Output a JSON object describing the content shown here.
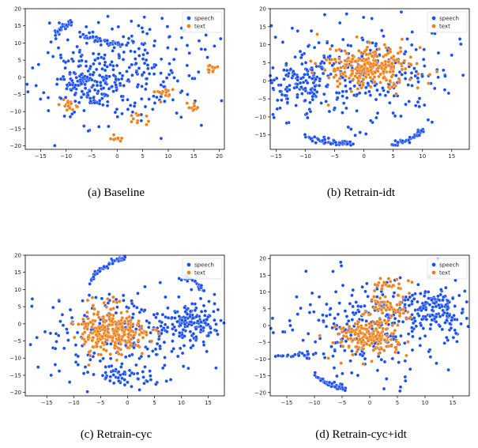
{
  "colors": {
    "speech": "#1a4ff0",
    "text": "#f07f18",
    "point_edge": "#ffffff",
    "axes": "#000000"
  },
  "legend": {
    "placement": "upper-right",
    "entries": [
      "speech",
      "text"
    ]
  },
  "chart_data": [
    {
      "id": "a",
      "type": "scatter",
      "caption": "(a) Baseline",
      "xlim": [
        -18,
        21
      ],
      "ylim": [
        -21,
        20
      ],
      "xticks": [
        -15,
        -10,
        -5,
        0,
        5,
        10,
        15,
        20
      ],
      "yticks": [
        -20,
        -15,
        -10,
        -5,
        0,
        5,
        10,
        15,
        20
      ],
      "series": [
        {
          "name": "speech",
          "seed": 11,
          "points": 380,
          "clusters": [
            {
              "cx": -1,
              "cy": 0,
              "sx": 8,
              "sy": 7,
              "w": 0.65
            },
            {
              "cx": -5,
              "cy": -2,
              "sx": 3,
              "sy": 4,
              "w": 0.25
            },
            {
              "cx": 5,
              "cy": 10,
              "sx": 6,
              "sy": 5,
              "w": 0.1
            }
          ],
          "arcs": [
            {
              "x": [
                -12,
                -11,
                -10,
                -9
              ],
              "y": [
                13,
                14.5,
                15.5,
                16
              ],
              "n": 28,
              "spread": 0.4
            },
            {
              "x": [
                -7,
                -4,
                -1,
                1
              ],
              "y": [
                12,
                11.5,
                10,
                9.5
              ],
              "n": 35,
              "spread": 0.3
            }
          ]
        },
        {
          "name": "text",
          "seed": 23,
          "points": 70,
          "clusters": [
            {
              "cx": -10,
              "cy": -8,
              "sx": 1,
              "sy": 1,
              "w": 0.25
            },
            {
              "cx": 0,
              "cy": -18,
              "sx": 0.8,
              "sy": 0.6,
              "w": 0.12
            },
            {
              "cx": 4,
              "cy": -12,
              "sx": 1,
              "sy": 1,
              "w": 0.15
            },
            {
              "cx": 9,
              "cy": -5,
              "sx": 1.2,
              "sy": 1.2,
              "w": 0.2
            },
            {
              "cx": 15,
              "cy": -9,
              "sx": 0.7,
              "sy": 1,
              "w": 0.13
            },
            {
              "cx": 18.5,
              "cy": 2.8,
              "sx": 0.6,
              "sy": 0.6,
              "w": 0.15
            }
          ],
          "arcs": []
        }
      ]
    },
    {
      "id": "b",
      "type": "scatter",
      "caption": "(b) Retrain-idt",
      "xlim": [
        -16,
        18
      ],
      "ylim": [
        -19,
        20
      ],
      "xticks": [
        -15,
        -10,
        -5,
        0,
        5,
        10,
        15
      ],
      "yticks": [
        -15,
        -10,
        -5,
        0,
        5,
        10,
        15,
        20
      ],
      "series": [
        {
          "name": "speech",
          "seed": 37,
          "points": 380,
          "clusters": [
            {
              "cx": 0,
              "cy": 2,
              "sx": 8,
              "sy": 7,
              "w": 0.75
            },
            {
              "cx": -11,
              "cy": -1,
              "sx": 3,
              "sy": 4,
              "w": 0.25
            }
          ],
          "arcs": [
            {
              "x": [
                -10,
                -7,
                -4,
                -2
              ],
              "y": [
                -15.5,
                -16.5,
                -17.3,
                -17.5
              ],
              "n": 45,
              "spread": 0.4
            },
            {
              "x": [
                5,
                7,
                9,
                10
              ],
              "y": [
                -17.5,
                -16.8,
                -15,
                -13.8
              ],
              "n": 40,
              "spread": 0.35
            }
          ]
        },
        {
          "name": "text",
          "seed": 41,
          "points": 260,
          "clusters": [
            {
              "cx": 1,
              "cy": 4,
              "sx": 3.5,
              "sy": 3.2,
              "w": 1
            }
          ],
          "arcs": []
        }
      ]
    },
    {
      "id": "c",
      "type": "scatter",
      "caption": "(c) Retrain-cyc",
      "xlim": [
        -19,
        18
      ],
      "ylim": [
        -21,
        20
      ],
      "xticks": [
        -15,
        -10,
        -5,
        0,
        5,
        10,
        15
      ],
      "yticks": [
        -20,
        -15,
        -10,
        -5,
        0,
        5,
        10,
        15,
        20
      ],
      "series": [
        {
          "name": "speech",
          "seed": 53,
          "points": 420,
          "clusters": [
            {
              "cx": -2,
              "cy": -3,
              "sx": 8,
              "sy": 6.5,
              "w": 0.55
            },
            {
              "cx": 12,
              "cy": 0,
              "sx": 3,
              "sy": 3,
              "w": 0.35
            },
            {
              "cx": 0,
              "cy": -16,
              "sx": 3,
              "sy": 1.5,
              "w": 0.1
            }
          ],
          "arcs": [
            {
              "x": [
                -7,
                -5,
                -2,
                -0.5
              ],
              "y": [
                13,
                16,
                18.5,
                19.3
              ],
              "n": 45,
              "spread": 0.4
            },
            {
              "x": [
                10,
                12,
                13.5,
                14
              ],
              "y": [
                14,
                13,
                11,
                10
              ],
              "n": 25,
              "spread": 0.5
            }
          ]
        },
        {
          "name": "text",
          "seed": 59,
          "points": 260,
          "clusters": [
            {
              "cx": -3,
              "cy": -2,
              "sx": 3.3,
              "sy": 3.3,
              "w": 1
            }
          ],
          "arcs": []
        }
      ]
    },
    {
      "id": "d",
      "type": "scatter",
      "caption": "(d) Retrain-cyc+idt",
      "xlim": [
        -18,
        18
      ],
      "ylim": [
        -21,
        21
      ],
      "xticks": [
        -15,
        -10,
        -5,
        0,
        5,
        10,
        15
      ],
      "yticks": [
        -20,
        -15,
        -10,
        -5,
        0,
        5,
        10,
        15,
        20
      ],
      "series": [
        {
          "name": "speech",
          "seed": 67,
          "points": 420,
          "clusters": [
            {
              "cx": 0,
              "cy": 0,
              "sx": 8,
              "sy": 7,
              "w": 0.65
            },
            {
              "cx": 12,
              "cy": 5,
              "sx": 3,
              "sy": 3,
              "w": 0.35
            }
          ],
          "arcs": [
            {
              "x": [
                -17,
                -14,
                -12,
                -11
              ],
              "y": [
                -8.8,
                -8.8,
                -9,
                -9
              ],
              "n": 20,
              "spread": 0.3
            },
            {
              "x": [
                -10,
                -8,
                -6,
                -4.5
              ],
              "y": [
                -15,
                -17,
                -18.3,
                -18.5
              ],
              "n": 35,
              "spread": 0.4
            }
          ]
        },
        {
          "name": "text",
          "seed": 71,
          "points": 250,
          "clusters": [
            {
              "cx": 0,
              "cy": -3,
              "sx": 3,
              "sy": 2.8,
              "w": 0.7
            },
            {
              "cx": 3.5,
              "cy": 6,
              "sx": 2,
              "sy": 2,
              "w": 0.2
            },
            {
              "cx": 3,
              "cy": 12,
              "sx": 1.5,
              "sy": 1.2,
              "w": 0.1
            }
          ],
          "arcs": []
        }
      ]
    }
  ]
}
